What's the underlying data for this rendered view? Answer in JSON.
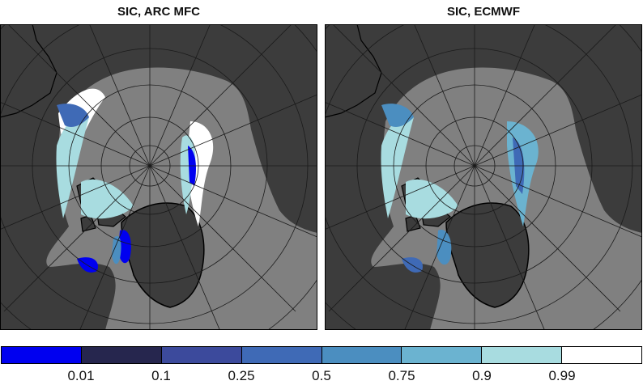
{
  "panels": [
    {
      "title": "SIC, ARC MFC"
    },
    {
      "title": "SIC, ECMWF"
    }
  ],
  "colorbar": {
    "colors": [
      "#0000f0",
      "#26264e",
      "#3c4a9c",
      "#3f6ab6",
      "#4b8ec0",
      "#6bb3d0",
      "#a8dce0",
      "#ffffff"
    ],
    "labels": [
      "0.01",
      "0.1",
      "0.25",
      "0.5",
      "0.75",
      "0.9",
      "0.99"
    ]
  },
  "colors": {
    "ocean": "#808080",
    "land": "#3c3c3c",
    "graticule": "#1a1a1a"
  }
}
